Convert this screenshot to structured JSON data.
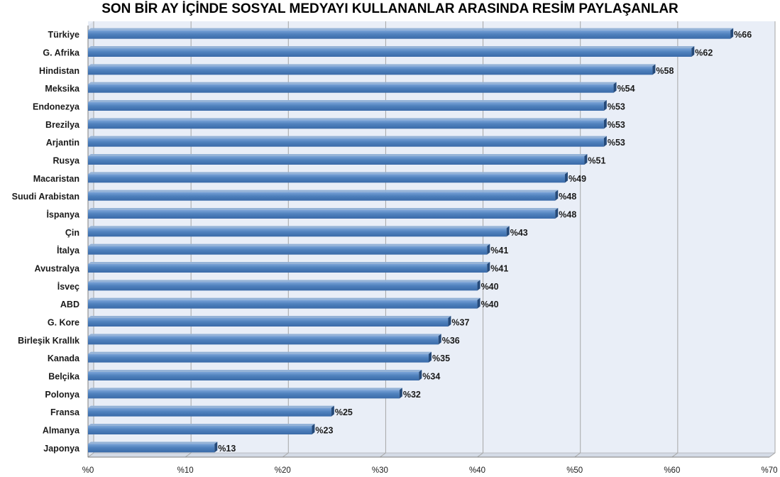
{
  "chart_data": {
    "type": "bar",
    "orientation": "horizontal",
    "title": "SON BİR AY İÇİNDE SOSYAL MEDYAYI KULLANANLAR ARASINDA RESİM PAYLAŞANLAR",
    "categories": [
      "Türkiye",
      "G. Afrika",
      "Hindistan",
      "Meksika",
      "Endonezya",
      "Brezilya",
      "Arjantin",
      "Rusya",
      "Macaristan",
      "Suudi Arabistan",
      "İspanya",
      "Çin",
      "İtalya",
      "Avustralya",
      "İsveç",
      "ABD",
      "G. Kore",
      "Birleşik Krallık",
      "Kanada",
      "Belçika",
      "Polonya",
      "Fransa",
      "Almanya",
      "Japonya"
    ],
    "values": [
      66,
      62,
      58,
      54,
      53,
      53,
      53,
      51,
      49,
      48,
      48,
      43,
      41,
      41,
      40,
      40,
      37,
      36,
      35,
      34,
      32,
      25,
      23,
      13
    ],
    "value_labels": [
      "%66",
      "%62",
      "%58",
      "%54",
      "%53",
      "%53",
      "%53",
      "%51",
      "%49",
      "%48",
      "%48",
      "%43",
      "%41",
      "%41",
      "%40",
      "%40",
      "%37",
      "%36",
      "%35",
      "%34",
      "%32",
      "%25",
      "%23",
      "%13"
    ],
    "xlim": [
      0,
      70
    ],
    "x_ticks": [
      0,
      10,
      20,
      30,
      40,
      50,
      60,
      70
    ],
    "x_tick_labels": [
      "%0",
      "%10",
      "%20",
      "%30",
      "%40",
      "%50",
      "%60",
      "%70"
    ],
    "xlabel": "",
    "ylabel": "",
    "grid": true,
    "legend": "none",
    "colors": {
      "bar_front": "#4f81bd",
      "bar_top": "#95b3d7",
      "bar_side": "#254a7a",
      "plot_bg": "#e9eef7",
      "grid": "#a6a6a6"
    }
  }
}
